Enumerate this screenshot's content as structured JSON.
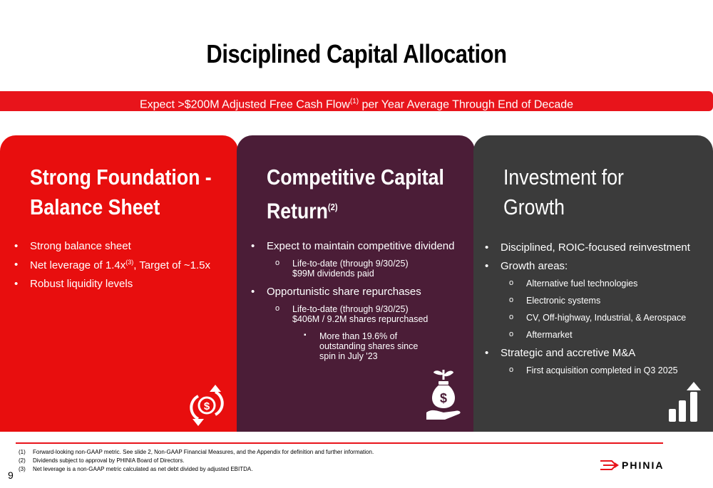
{
  "title": "Disciplined Capital Allocation",
  "banner": {
    "text_before": "Expect >$200M Adjusted Free Cash Flow",
    "sup": "(1)",
    "text_after": " per Year Average Through End of Decade"
  },
  "panels": [
    {
      "title_line1": "Strong Foundation -",
      "title_line2": "Balance Sheet",
      "bullets": [
        "Strong balance sheet",
        "Net leverage of 1.4x",
        "Robust liquidity levels"
      ],
      "bullet2_sup": "(3)",
      "bullet2_suffix": ", Target of ~1.5x",
      "icon": "cash-cycle-icon"
    },
    {
      "title_line1": "Competitive Capital",
      "title_line2": "Return",
      "title_sup": "(2)",
      "b1": "Expect to maintain competitive dividend",
      "b1_sub": "Life-to-date (through 9/30/25) $99M dividends paid",
      "b2": "Opportunistic share repurchases",
      "b2_sub": "Life-to-date (through 9/30/25) $406M / 9.2M shares repurchased",
      "b2_subsub": "More than 19.6% of outstanding shares since spin in July '23",
      "icon": "money-bag-hand-icon"
    },
    {
      "title_line1": "Investment for",
      "title_line2": "Growth",
      "b1": "Disciplined, ROIC-focused reinvestment",
      "b2": "Growth areas:",
      "b2_subs": [
        "Alternative fuel technologies",
        "Electronic systems",
        "CV, Off-highway, Industrial, & Aerospace",
        "Aftermarket"
      ],
      "b3": "Strategic and accretive M&A",
      "b3_sub": "First acquisition completed in Q3 2025",
      "icon": "growth-chart-icon"
    }
  ],
  "footnotes": [
    {
      "num": "(1)",
      "text": "Forward-looking non-GAAP metric. See slide 2, Non-GAAP Financial Measures, and the Appendix for definition and further information."
    },
    {
      "num": "(2)",
      "text": "Dividends subject to approval by PHINIA Board of Directors."
    },
    {
      "num": "(3)",
      "text": "Net leverage is a non-GAAP metric calculated as net debt divided by adjusted EBITDA."
    }
  ],
  "page_number": "9",
  "logo": "PHINIA",
  "colors": {
    "accent": "#e8141b",
    "panel1": "#e80e0e",
    "panel2": "#4b1d37",
    "panel3": "#3b3b3b"
  }
}
